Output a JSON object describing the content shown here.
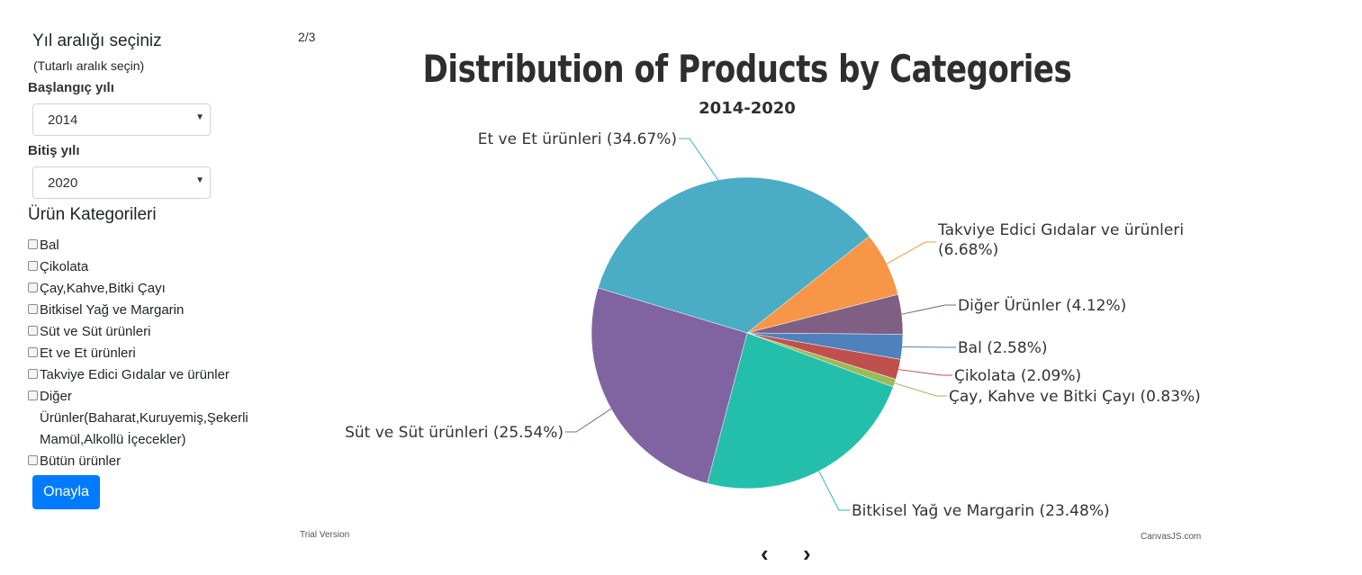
{
  "sidebar": {
    "title": "Yıl aralığı seçiniz",
    "subtitle": "(Tutarlı aralık seçin)",
    "start_label": "Başlangıç yılı",
    "start_value": "2014",
    "end_label": "Bitiş yılı",
    "end_value": "2020",
    "categories_heading": "Ürün Kategorileri",
    "categories": [
      "Bal",
      "Çikolata",
      "Çay,Kahve,Bitki Çayı",
      "Bitkisel Yağ ve Margarin",
      "Süt ve Süt ürünleri",
      "Et ve Et ürünleri",
      "Takviye Edici Gıdalar ve ürünler",
      "Diğer Ürünler(Baharat,Kuruyemiş,Şekerli Mamül,Alkollü İçecekler)",
      "Bütün ürünler"
    ],
    "confirm_label": "Onayla"
  },
  "page_counter": "2/3",
  "chart_data": {
    "type": "pie",
    "title": "Distribution of Products by Categories",
    "subtitle": "2014-2020",
    "slices": [
      {
        "label": "Et ve Et ürünleri",
        "value": 34.67,
        "color": "#4aacc5"
      },
      {
        "label": "Takviye Edici Gıdalar ve ürünleri",
        "value": 6.68,
        "color": "#f79647"
      },
      {
        "label": "Diğer Ürünler",
        "value": 4.12,
        "color": "#7f6084"
      },
      {
        "label": "Bal",
        "value": 2.58,
        "color": "#4f81bc"
      },
      {
        "label": "Çikolata",
        "value": 2.09,
        "color": "#c0504e"
      },
      {
        "label": "Çay, Kahve ve Bitki Çayı",
        "value": 0.83,
        "color": "#9bbb58"
      },
      {
        "label": "Bitkisel Yağ ve Margarin",
        "value": 23.48,
        "color": "#23bfaa"
      },
      {
        "label": "Süt ve Süt ürünleri",
        "value": 25.54,
        "color": "#8064a1"
      }
    ],
    "value_suffix": "%"
  },
  "watermark_left": "Trial Version",
  "watermark_right": "CanvasJS.com",
  "nav": {
    "prev": "‹",
    "next": "›"
  }
}
